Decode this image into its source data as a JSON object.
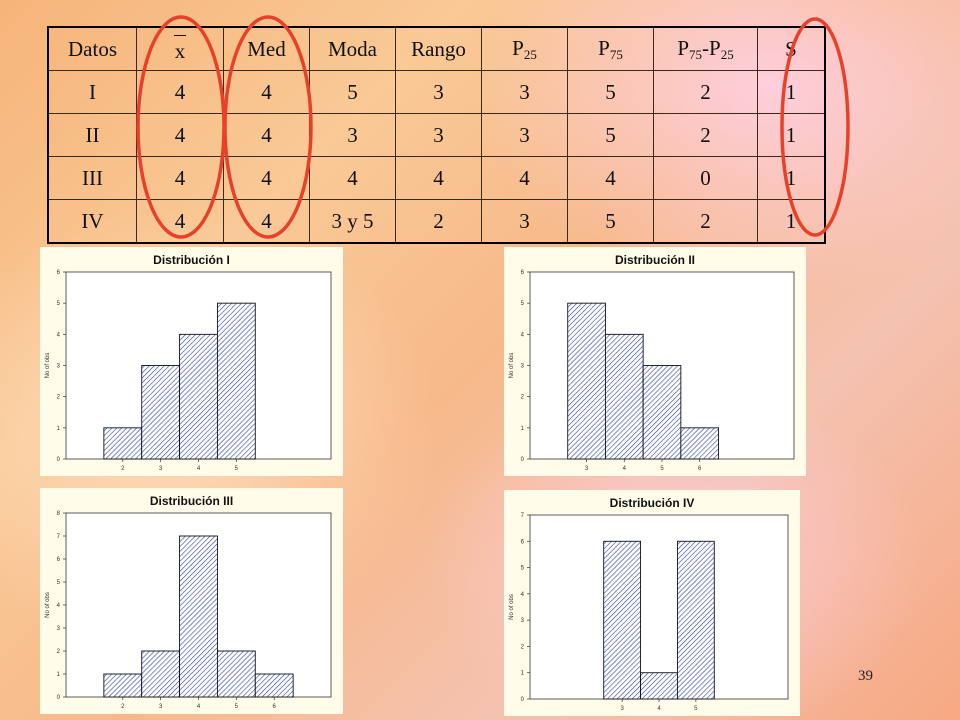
{
  "table": {
    "headers": {
      "datos": "Datos",
      "mean": "x",
      "med": "Med",
      "moda": "Moda",
      "rango": "Rango",
      "p25": {
        "base": "P",
        "sub": "25"
      },
      "p75": {
        "base": "P",
        "sub": "75"
      },
      "iqr": {
        "a": "P",
        "a_sub": "75",
        "sep": "-P",
        "b_sub": "25"
      },
      "s": "S"
    },
    "rows": [
      {
        "datos": "I",
        "mean": "4",
        "med": "4",
        "moda": "5",
        "rango": "3",
        "p25": "3",
        "p75": "5",
        "iqr": "2",
        "s": "1"
      },
      {
        "datos": "II",
        "mean": "4",
        "med": "4",
        "moda": "3",
        "rango": "3",
        "p25": "3",
        "p75": "5",
        "iqr": "2",
        "s": "1"
      },
      {
        "datos": "III",
        "mean": "4",
        "med": "4",
        "moda": "4",
        "rango": "4",
        "p25": "4",
        "p75": "4",
        "iqr": "0",
        "s": "1"
      },
      {
        "datos": "IV",
        "mean": "4",
        "med": "4",
        "moda": "3 y 5",
        "rango": "2",
        "p25": "3",
        "p75": "5",
        "iqr": "2",
        "s": "1"
      }
    ]
  },
  "highlight_color": "#e8412a",
  "chart_data": [
    {
      "type": "bar",
      "title": "Distribución I",
      "ylabel": "No of obs",
      "categories": [
        "2",
        "3",
        "4",
        "5"
      ],
      "values": [
        1,
        3,
        4,
        5
      ],
      "xlim": [
        0.5,
        7.5
      ],
      "ylim": [
        0,
        6
      ],
      "yticks": [
        "0",
        "1",
        "2",
        "3",
        "4",
        "5",
        "6"
      ],
      "bar_fill": "hatched blue",
      "grid": false
    },
    {
      "type": "bar",
      "title": "Distribución II",
      "ylabel": "No of obs",
      "categories": [
        "3",
        "4",
        "5",
        "6"
      ],
      "values": [
        5,
        4,
        3,
        1
      ],
      "xlim": [
        1.5,
        8.5
      ],
      "ylim": [
        0,
        6
      ],
      "yticks": [
        "0",
        "1",
        "2",
        "3",
        "4",
        "5",
        "6"
      ],
      "bar_fill": "hatched blue",
      "grid": false
    },
    {
      "type": "bar",
      "title": "Distribución III",
      "ylabel": "No of obs",
      "categories": [
        "2",
        "3",
        "4",
        "5",
        "6"
      ],
      "values": [
        1,
        2,
        7,
        2,
        1
      ],
      "xlim": [
        0.5,
        7.5
      ],
      "ylim": [
        0,
        8
      ],
      "yticks": [
        "0",
        "1",
        "2",
        "3",
        "4",
        "5",
        "6",
        "7",
        "8"
      ],
      "bar_fill": "hatched blue",
      "grid": false
    },
    {
      "type": "bar",
      "title": "Distribución IV",
      "ylabel": "No of obs",
      "categories": [
        "3",
        "4",
        "5"
      ],
      "values": [
        6,
        1,
        6
      ],
      "xlim": [
        0.5,
        7.5
      ],
      "ylim": [
        0,
        7
      ],
      "yticks": [
        "0",
        "1",
        "2",
        "3",
        "4",
        "5",
        "6",
        "7"
      ],
      "bar_fill": "hatched blue",
      "grid": false
    }
  ],
  "page_number": "39"
}
